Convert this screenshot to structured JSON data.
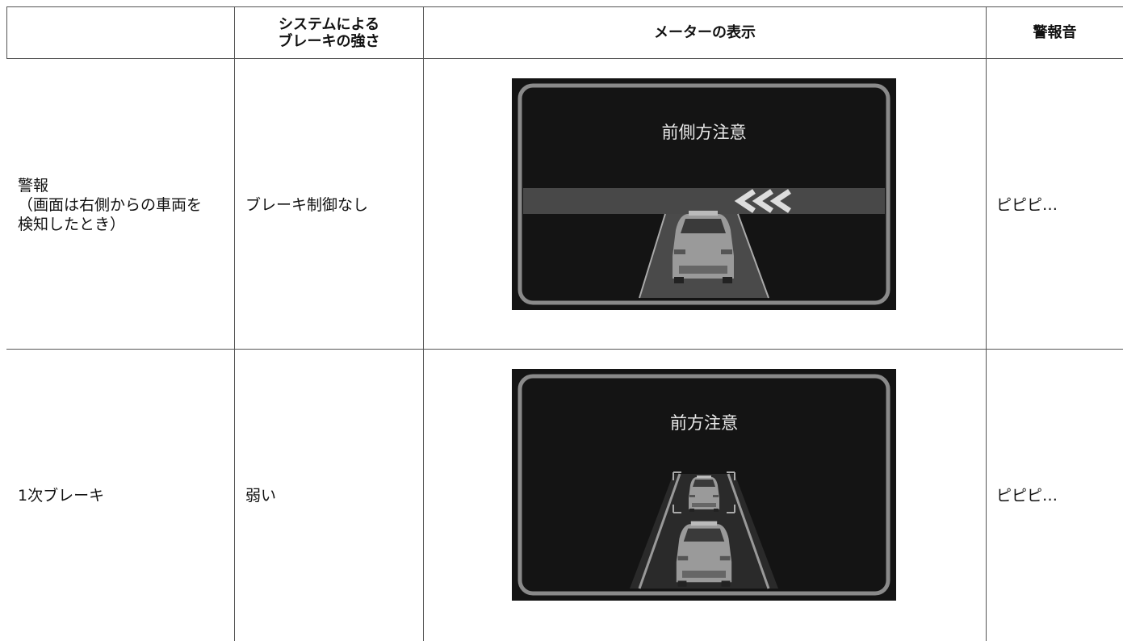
{
  "table": {
    "header": {
      "brake": [
        "システムによる",
        "ブレーキの強さ"
      ],
      "meter": "メーターの表示",
      "sound": "警報音"
    },
    "rows": [
      {
        "stage": [
          "警報",
          "（画面は右側からの車両を",
          "検知したとき）"
        ],
        "brake": "ブレーキ制御なし",
        "meter_text": "前側方注意",
        "sound": "ピピピ…"
      },
      {
        "stage": [
          "1次ブレーキ"
        ],
        "brake": "弱い",
        "meter_text": "前方注意",
        "sound": "ピピピ…"
      }
    ]
  }
}
